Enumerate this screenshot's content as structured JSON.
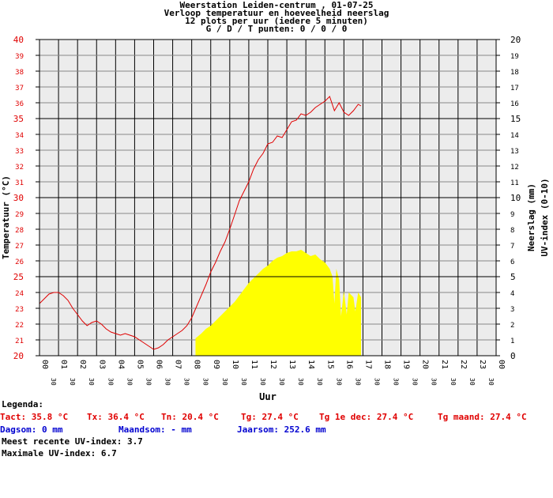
{
  "header": {
    "title_line1": "Weerstation Leiden-centrum , 01-07-25",
    "title_line2": "Verloop temperatuur en hoeveelheid neerslag",
    "title_line3": "12 plots per uur (iedere 5 minuten)",
    "title_line4": "G / D / T punten: 0 / 0 / 0"
  },
  "chart_data": {
    "type": "line",
    "xlabel": "Uur",
    "ylabel_left": "Temperatuur (°C)",
    "ylabel_right_1": "Neerslag (mm)",
    "ylabel_right_2": "UV-index (0-10)",
    "x_range": [
      0,
      24
    ],
    "y_left_range": [
      20,
      40
    ],
    "y_right_range": [
      0,
      20
    ],
    "hour_labels": [
      "00",
      "01",
      "02",
      "03",
      "04",
      "05",
      "06",
      "07",
      "08",
      "09",
      "10",
      "11",
      "12",
      "13",
      "14",
      "15",
      "16",
      "17",
      "18",
      "19",
      "20",
      "21",
      "22",
      "23",
      "00"
    ],
    "half_label": "30",
    "y_left_ticks": [
      20,
      21,
      22,
      23,
      24,
      25,
      26,
      27,
      28,
      29,
      30,
      31,
      32,
      33,
      34,
      35,
      36,
      37,
      38,
      39,
      40
    ],
    "y_right_ticks": [
      0,
      1,
      2,
      3,
      4,
      5,
      6,
      7,
      8,
      9,
      10,
      11,
      12,
      13,
      14,
      15,
      16,
      17,
      18,
      19,
      20
    ],
    "series": [
      {
        "name": "Temperatuur",
        "color": "#e00000",
        "axis": "left",
        "points": [
          [
            0.0,
            23.3
          ],
          [
            0.25,
            23.6
          ],
          [
            0.5,
            23.9
          ],
          [
            0.75,
            24.0
          ],
          [
            1.0,
            24.0
          ],
          [
            1.25,
            23.8
          ],
          [
            1.5,
            23.5
          ],
          [
            1.75,
            23.0
          ],
          [
            2.0,
            22.6
          ],
          [
            2.25,
            22.2
          ],
          [
            2.5,
            21.9
          ],
          [
            2.75,
            22.1
          ],
          [
            3.0,
            22.2
          ],
          [
            3.25,
            22.0
          ],
          [
            3.5,
            21.7
          ],
          [
            3.75,
            21.5
          ],
          [
            4.0,
            21.4
          ],
          [
            4.25,
            21.3
          ],
          [
            4.5,
            21.4
          ],
          [
            4.75,
            21.3
          ],
          [
            5.0,
            21.2
          ],
          [
            5.25,
            21.0
          ],
          [
            5.5,
            20.8
          ],
          [
            5.75,
            20.6
          ],
          [
            6.0,
            20.4
          ],
          [
            6.25,
            20.5
          ],
          [
            6.5,
            20.7
          ],
          [
            6.75,
            21.0
          ],
          [
            7.0,
            21.2
          ],
          [
            7.25,
            21.4
          ],
          [
            7.5,
            21.6
          ],
          [
            7.75,
            21.9
          ],
          [
            8.0,
            22.4
          ],
          [
            8.25,
            23.1
          ],
          [
            8.5,
            23.8
          ],
          [
            8.75,
            24.5
          ],
          [
            9.0,
            25.3
          ],
          [
            9.25,
            25.9
          ],
          [
            9.5,
            26.6
          ],
          [
            9.75,
            27.2
          ],
          [
            10.0,
            28.0
          ],
          [
            10.25,
            28.9
          ],
          [
            10.5,
            29.8
          ],
          [
            10.75,
            30.4
          ],
          [
            11.0,
            31.0
          ],
          [
            11.25,
            31.8
          ],
          [
            11.5,
            32.4
          ],
          [
            11.75,
            32.8
          ],
          [
            12.0,
            33.4
          ],
          [
            12.25,
            33.5
          ],
          [
            12.5,
            33.9
          ],
          [
            12.75,
            33.8
          ],
          [
            13.0,
            34.3
          ],
          [
            13.25,
            34.8
          ],
          [
            13.5,
            34.9
          ],
          [
            13.75,
            35.3
          ],
          [
            14.0,
            35.2
          ],
          [
            14.25,
            35.4
          ],
          [
            14.5,
            35.7
          ],
          [
            14.75,
            35.9
          ],
          [
            15.0,
            36.1
          ],
          [
            15.25,
            36.4
          ],
          [
            15.5,
            35.5
          ],
          [
            15.75,
            36.0
          ],
          [
            16.0,
            35.4
          ],
          [
            16.25,
            35.2
          ],
          [
            16.5,
            35.5
          ],
          [
            16.75,
            35.9
          ],
          [
            16.9,
            35.8
          ]
        ]
      },
      {
        "name": "UV-index",
        "color": "#ffff00",
        "axis": "right",
        "points": [
          [
            8.2,
            1.1
          ],
          [
            8.5,
            1.4
          ],
          [
            8.75,
            1.7
          ],
          [
            9.0,
            1.9
          ],
          [
            9.25,
            2.2
          ],
          [
            9.5,
            2.5
          ],
          [
            9.75,
            2.8
          ],
          [
            10.0,
            3.1
          ],
          [
            10.25,
            3.4
          ],
          [
            10.5,
            3.8
          ],
          [
            10.75,
            4.2
          ],
          [
            11.0,
            4.6
          ],
          [
            11.25,
            4.9
          ],
          [
            11.5,
            5.2
          ],
          [
            11.75,
            5.5
          ],
          [
            12.0,
            5.7
          ],
          [
            12.25,
            6.0
          ],
          [
            12.5,
            6.2
          ],
          [
            12.75,
            6.3
          ],
          [
            13.0,
            6.5
          ],
          [
            13.25,
            6.6
          ],
          [
            13.5,
            6.6
          ],
          [
            13.75,
            6.7
          ],
          [
            14.0,
            6.5
          ],
          [
            14.25,
            6.3
          ],
          [
            14.5,
            6.4
          ],
          [
            14.75,
            6.1
          ],
          [
            15.0,
            5.9
          ],
          [
            15.25,
            5.5
          ],
          [
            15.4,
            5.0
          ],
          [
            15.5,
            3.3
          ],
          [
            15.6,
            5.5
          ],
          [
            15.75,
            4.8
          ],
          [
            15.85,
            2.5
          ],
          [
            16.0,
            4.1
          ],
          [
            16.15,
            2.6
          ],
          [
            16.25,
            4.0
          ],
          [
            16.5,
            3.7
          ],
          [
            16.6,
            2.8
          ],
          [
            16.75,
            4.0
          ],
          [
            16.9,
            3.7
          ]
        ]
      }
    ]
  },
  "legend": {
    "heading": "Legenda:",
    "tact": "Tact: 35.8 °C",
    "tx": "Tx: 36.4 °C",
    "tn": "Tn: 20.4 °C",
    "tg": "Tg: 27.4 °C",
    "tg_dec": "Tg 1e dec: 27.4 °C",
    "tg_maand": "Tg maand: 27.4 °C",
    "dagsom": "Dagsom: 0 mm",
    "maandsom": "Maandsom: - mm",
    "jaarsom": "Jaarsom: 252.6 mm",
    "uv_recent": "Meest recente UV-index: 3.7",
    "uv_max": "Maximale UV-index: 6.7"
  }
}
